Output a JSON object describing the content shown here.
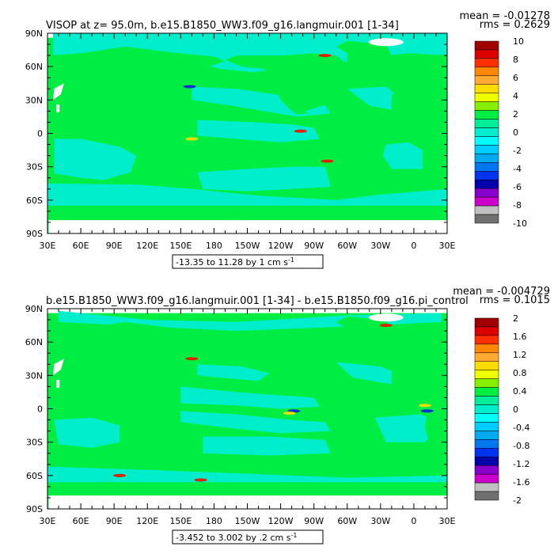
{
  "colors": {
    "ocean_bg": "#00ee44",
    "cyan": "#00eecc",
    "land": "#ffffff",
    "blob_red": "#dd2200",
    "blob_yellow": "#eedd00",
    "blob_blue": "#0033cc"
  },
  "chart_data": [
    {
      "type": "heatmap",
      "title": "VISOP at z=  95.0m, b.e15.B1850_WW3.f09_g16.langmuir.001 [1-34]",
      "stats": {
        "mean": "mean = -0.01278",
        "rms": "rms = 0.2629"
      },
      "x_ticks": [
        "30E",
        "60E",
        "90E",
        "120E",
        "150E",
        "180",
        "150W",
        "120W",
        "90W",
        "60W",
        "30W",
        "0",
        "30E"
      ],
      "y_ticks": [
        "90N",
        "60N",
        "30N",
        "0",
        "30S",
        "60S",
        "90S"
      ],
      "xlim": [
        30,
        390
      ],
      "ylim": [
        -90,
        90
      ],
      "range_label": "-13.35 to 11.28 by 1 cm s",
      "range_unit_exp": "-1",
      "colorbar": {
        "labels": [
          "10",
          "8",
          "6",
          "4",
          "2",
          "0",
          "-2",
          "-4",
          "-6",
          "-8",
          "-10"
        ],
        "colors": [
          "#a00000",
          "#dd0000",
          "#ff3000",
          "#ff8800",
          "#ffaa33",
          "#ffdd00",
          "#eeff00",
          "#88ee00",
          "#00ee44",
          "#00ee99",
          "#00eecc",
          "#00ffff",
          "#00ccff",
          "#00aaee",
          "#0077ee",
          "#0033ee",
          "#0000aa",
          "#8800cc",
          "#cc00cc",
          "#c0c0c0",
          "#707070"
        ]
      }
    },
    {
      "type": "heatmap",
      "title": "b.e15.B1850_WW3.f09_g16.langmuir.001 [1-34] - b.e15.B1850.f09_g16.pi_control",
      "stats": {
        "mean": "mean = -0.004729",
        "rms": "rms = 0.1015"
      },
      "x_ticks": [
        "30E",
        "60E",
        "90E",
        "120E",
        "150E",
        "180",
        "150W",
        "120W",
        "90W",
        "60W",
        "30W",
        "0",
        "30E"
      ],
      "y_ticks": [
        "90N",
        "60N",
        "30N",
        "0",
        "30S",
        "60S",
        "90S"
      ],
      "xlim": [
        30,
        390
      ],
      "ylim": [
        -90,
        90
      ],
      "range_label": "-3.452 to 3.002 by .2 cm s",
      "range_unit_exp": "-1",
      "colorbar": {
        "labels": [
          "2",
          "1.6",
          "1.2",
          "0.8",
          "0.4",
          "0",
          "-0.4",
          "-0.8",
          "-1.2",
          "-1.6",
          "-2"
        ],
        "colors": [
          "#a00000",
          "#dd0000",
          "#ff3000",
          "#ff8800",
          "#ffaa33",
          "#ffdd00",
          "#eeff00",
          "#88ee00",
          "#00ee44",
          "#00ee99",
          "#00eecc",
          "#00ffff",
          "#00ccff",
          "#00aaee",
          "#0077ee",
          "#0033ee",
          "#0000aa",
          "#8800cc",
          "#cc00cc",
          "#c0c0c0",
          "#707070"
        ]
      }
    }
  ]
}
